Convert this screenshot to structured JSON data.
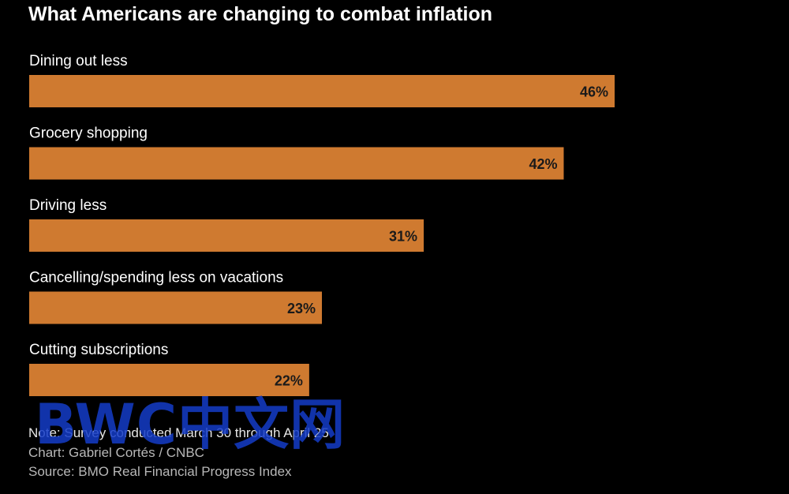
{
  "title": "What Americans are changing to combat inflation",
  "chart_data": {
    "type": "bar",
    "orientation": "horizontal",
    "title": "What Americans are changing to combat inflation",
    "categories": [
      "Dining out less",
      "Grocery shopping",
      "Driving less",
      "Cancelling/spending less on vacations",
      "Cutting subscriptions"
    ],
    "values": [
      46,
      42,
      31,
      23,
      22
    ],
    "value_suffix": "%",
    "xlim": [
      0,
      62
    ],
    "bar_color": "#cf7a30",
    "label_color": "#ffffff",
    "value_label_color": "#1a1a1a",
    "grid": false
  },
  "footer": {
    "note": "Note: Survey conducted March 30 through April 25",
    "chart_credit": "Chart: Gabriel Cortés / CNBC",
    "source": "Source: BMO Real Financial Progress Index"
  },
  "watermark": "BWC中文网"
}
